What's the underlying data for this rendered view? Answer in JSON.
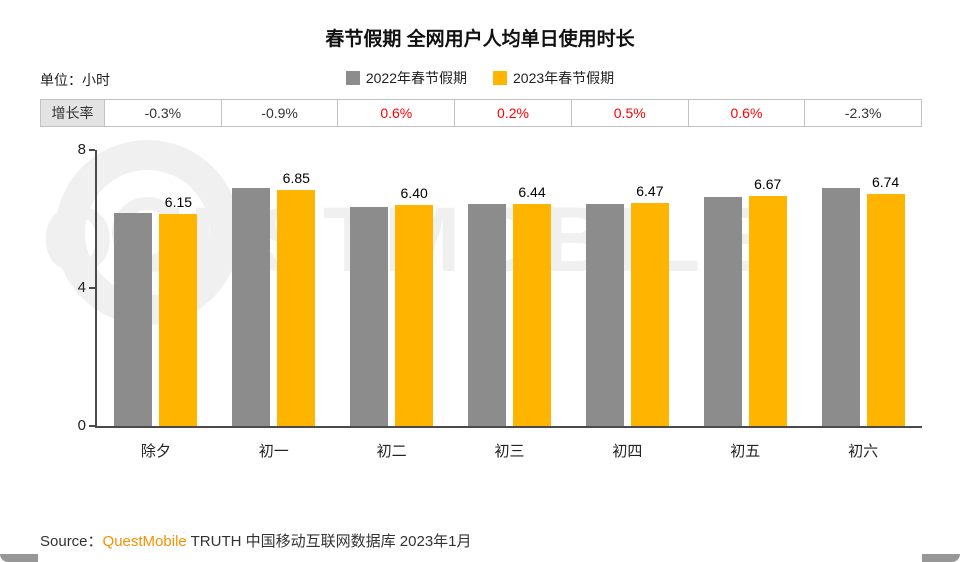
{
  "title": "春节假期 全网用户人均单日使用时长",
  "unit_label": "单位：小时",
  "legend": [
    {
      "label": "2022年春节假期",
      "color": "#8c8c8c"
    },
    {
      "label": "2023年春节假期",
      "color": "#ffb400"
    }
  ],
  "growth_row": {
    "label": "增长率",
    "values": [
      {
        "text": "-0.3%",
        "color": "#333333"
      },
      {
        "text": "-0.9%",
        "color": "#333333"
      },
      {
        "text": "0.6%",
        "color": "#ff0000"
      },
      {
        "text": "0.2%",
        "color": "#ff0000"
      },
      {
        "text": "0.5%",
        "color": "#ff0000"
      },
      {
        "text": "0.6%",
        "color": "#ff0000"
      },
      {
        "text": "-2.3%",
        "color": "#333333"
      }
    ]
  },
  "chart_data": {
    "type": "bar",
    "title": "春节假期 全网用户人均单日使用时长",
    "ylabel": "单位：小时",
    "categories": [
      "除夕",
      "初一",
      "初二",
      "初三",
      "初四",
      "初五",
      "初六"
    ],
    "series": [
      {
        "name": "2022年春节假期",
        "color": "#8c8c8c",
        "values": [
          6.17,
          6.91,
          6.36,
          6.43,
          6.44,
          6.63,
          6.9
        ],
        "labels_shown": false
      },
      {
        "name": "2023年春节假期",
        "color": "#ffb400",
        "values": [
          6.15,
          6.85,
          6.4,
          6.44,
          6.47,
          6.67,
          6.74
        ],
        "labels_shown": true
      }
    ],
    "growth_rate": [
      "-0.3%",
      "-0.9%",
      "0.6%",
      "0.2%",
      "0.5%",
      "0.6%",
      "-2.3%"
    ],
    "ylim": [
      0,
      8
    ],
    "yticks": [
      0,
      4,
      8
    ],
    "grid": false,
    "legend_position": "top"
  },
  "watermark": "QUESTMOBILE",
  "source": {
    "prefix": "Source：",
    "brand": "QuestMobile",
    "suffix": " TRUTH 中国移动互联网数据库 2023年1月"
  }
}
